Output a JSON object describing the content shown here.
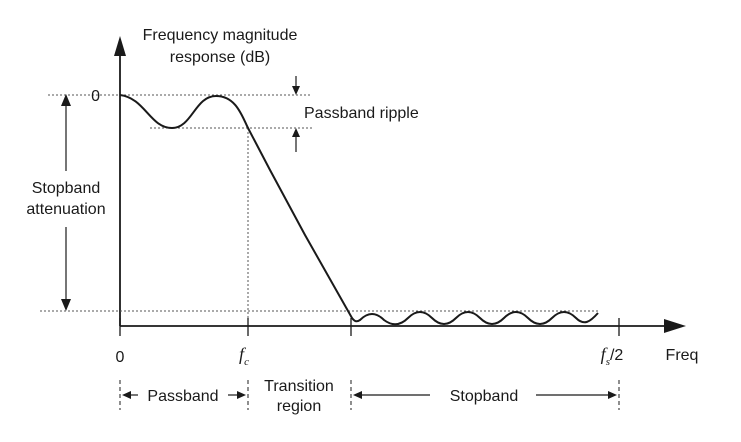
{
  "axis": {
    "y_label_line1": "Frequency magnitude",
    "y_label_line2": "response (dB)",
    "y_zero": "0",
    "x_zero": "0",
    "x_label": "Freq",
    "fc_main": "f",
    "fc_sub": "c",
    "fs_main": "f",
    "fs_sub": "s",
    "fs_suffix": "/2"
  },
  "annotations": {
    "passband_ripple": "Passband ripple",
    "stopband_attenuation_line1": "Stopband",
    "stopband_attenuation_line2": "attenuation"
  },
  "regions": {
    "passband": "Passband",
    "transition_line1": "Transition",
    "transition_line2": "region",
    "stopband": "Stopband"
  }
}
